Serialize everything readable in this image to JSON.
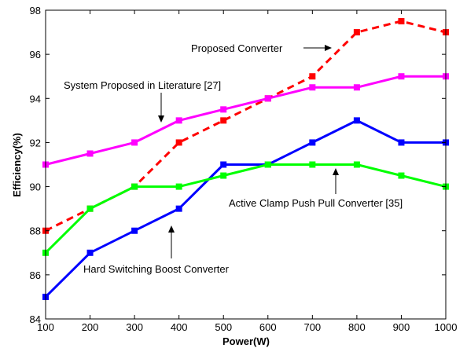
{
  "chart_data": {
    "type": "line",
    "title": "",
    "xlabel": "Power(W)",
    "ylabel": "Efficiency(%)",
    "xlim": [
      100,
      1000
    ],
    "ylim": [
      84,
      98
    ],
    "x_ticks": [
      100,
      200,
      300,
      400,
      500,
      600,
      700,
      800,
      900,
      1000
    ],
    "y_ticks": [
      84,
      86,
      88,
      90,
      92,
      94,
      96,
      98
    ],
    "grid": false,
    "x": [
      100,
      200,
      300,
      400,
      500,
      600,
      700,
      800,
      900,
      1000
    ],
    "series": [
      {
        "key": "proposed",
        "color": "#ff0000",
        "dashed": true,
        "marker": "square",
        "values": [
          88,
          89,
          90,
          92,
          93,
          94,
          95,
          97,
          97.5,
          97
        ]
      },
      {
        "key": "literature",
        "color": "#ff00ff",
        "dashed": false,
        "marker": "square",
        "values": [
          91,
          91.5,
          92,
          93,
          93.5,
          94,
          94.5,
          94.5,
          95,
          95
        ]
      },
      {
        "key": "hard_switching",
        "color": "#0000ff",
        "dashed": false,
        "marker": "square",
        "values": [
          85,
          87,
          88,
          89,
          91,
          91,
          92,
          93,
          92,
          92
        ]
      },
      {
        "key": "active_clamp",
        "color": "#00ff00",
        "dashed": false,
        "marker": "square",
        "values": [
          87,
          89,
          90,
          90,
          90.5,
          91,
          91,
          91,
          90.5,
          90
        ]
      }
    ],
    "annotations": [
      {
        "series": "proposed",
        "text": "Proposed Converter"
      },
      {
        "series": "literature",
        "text": "System Proposed in Literature [27]"
      },
      {
        "series": "active_clamp",
        "text": "Active Clamp Push Pull Converter [35]"
      },
      {
        "series": "hard_switching",
        "text": "Hard Switching Boost Converter"
      }
    ]
  }
}
